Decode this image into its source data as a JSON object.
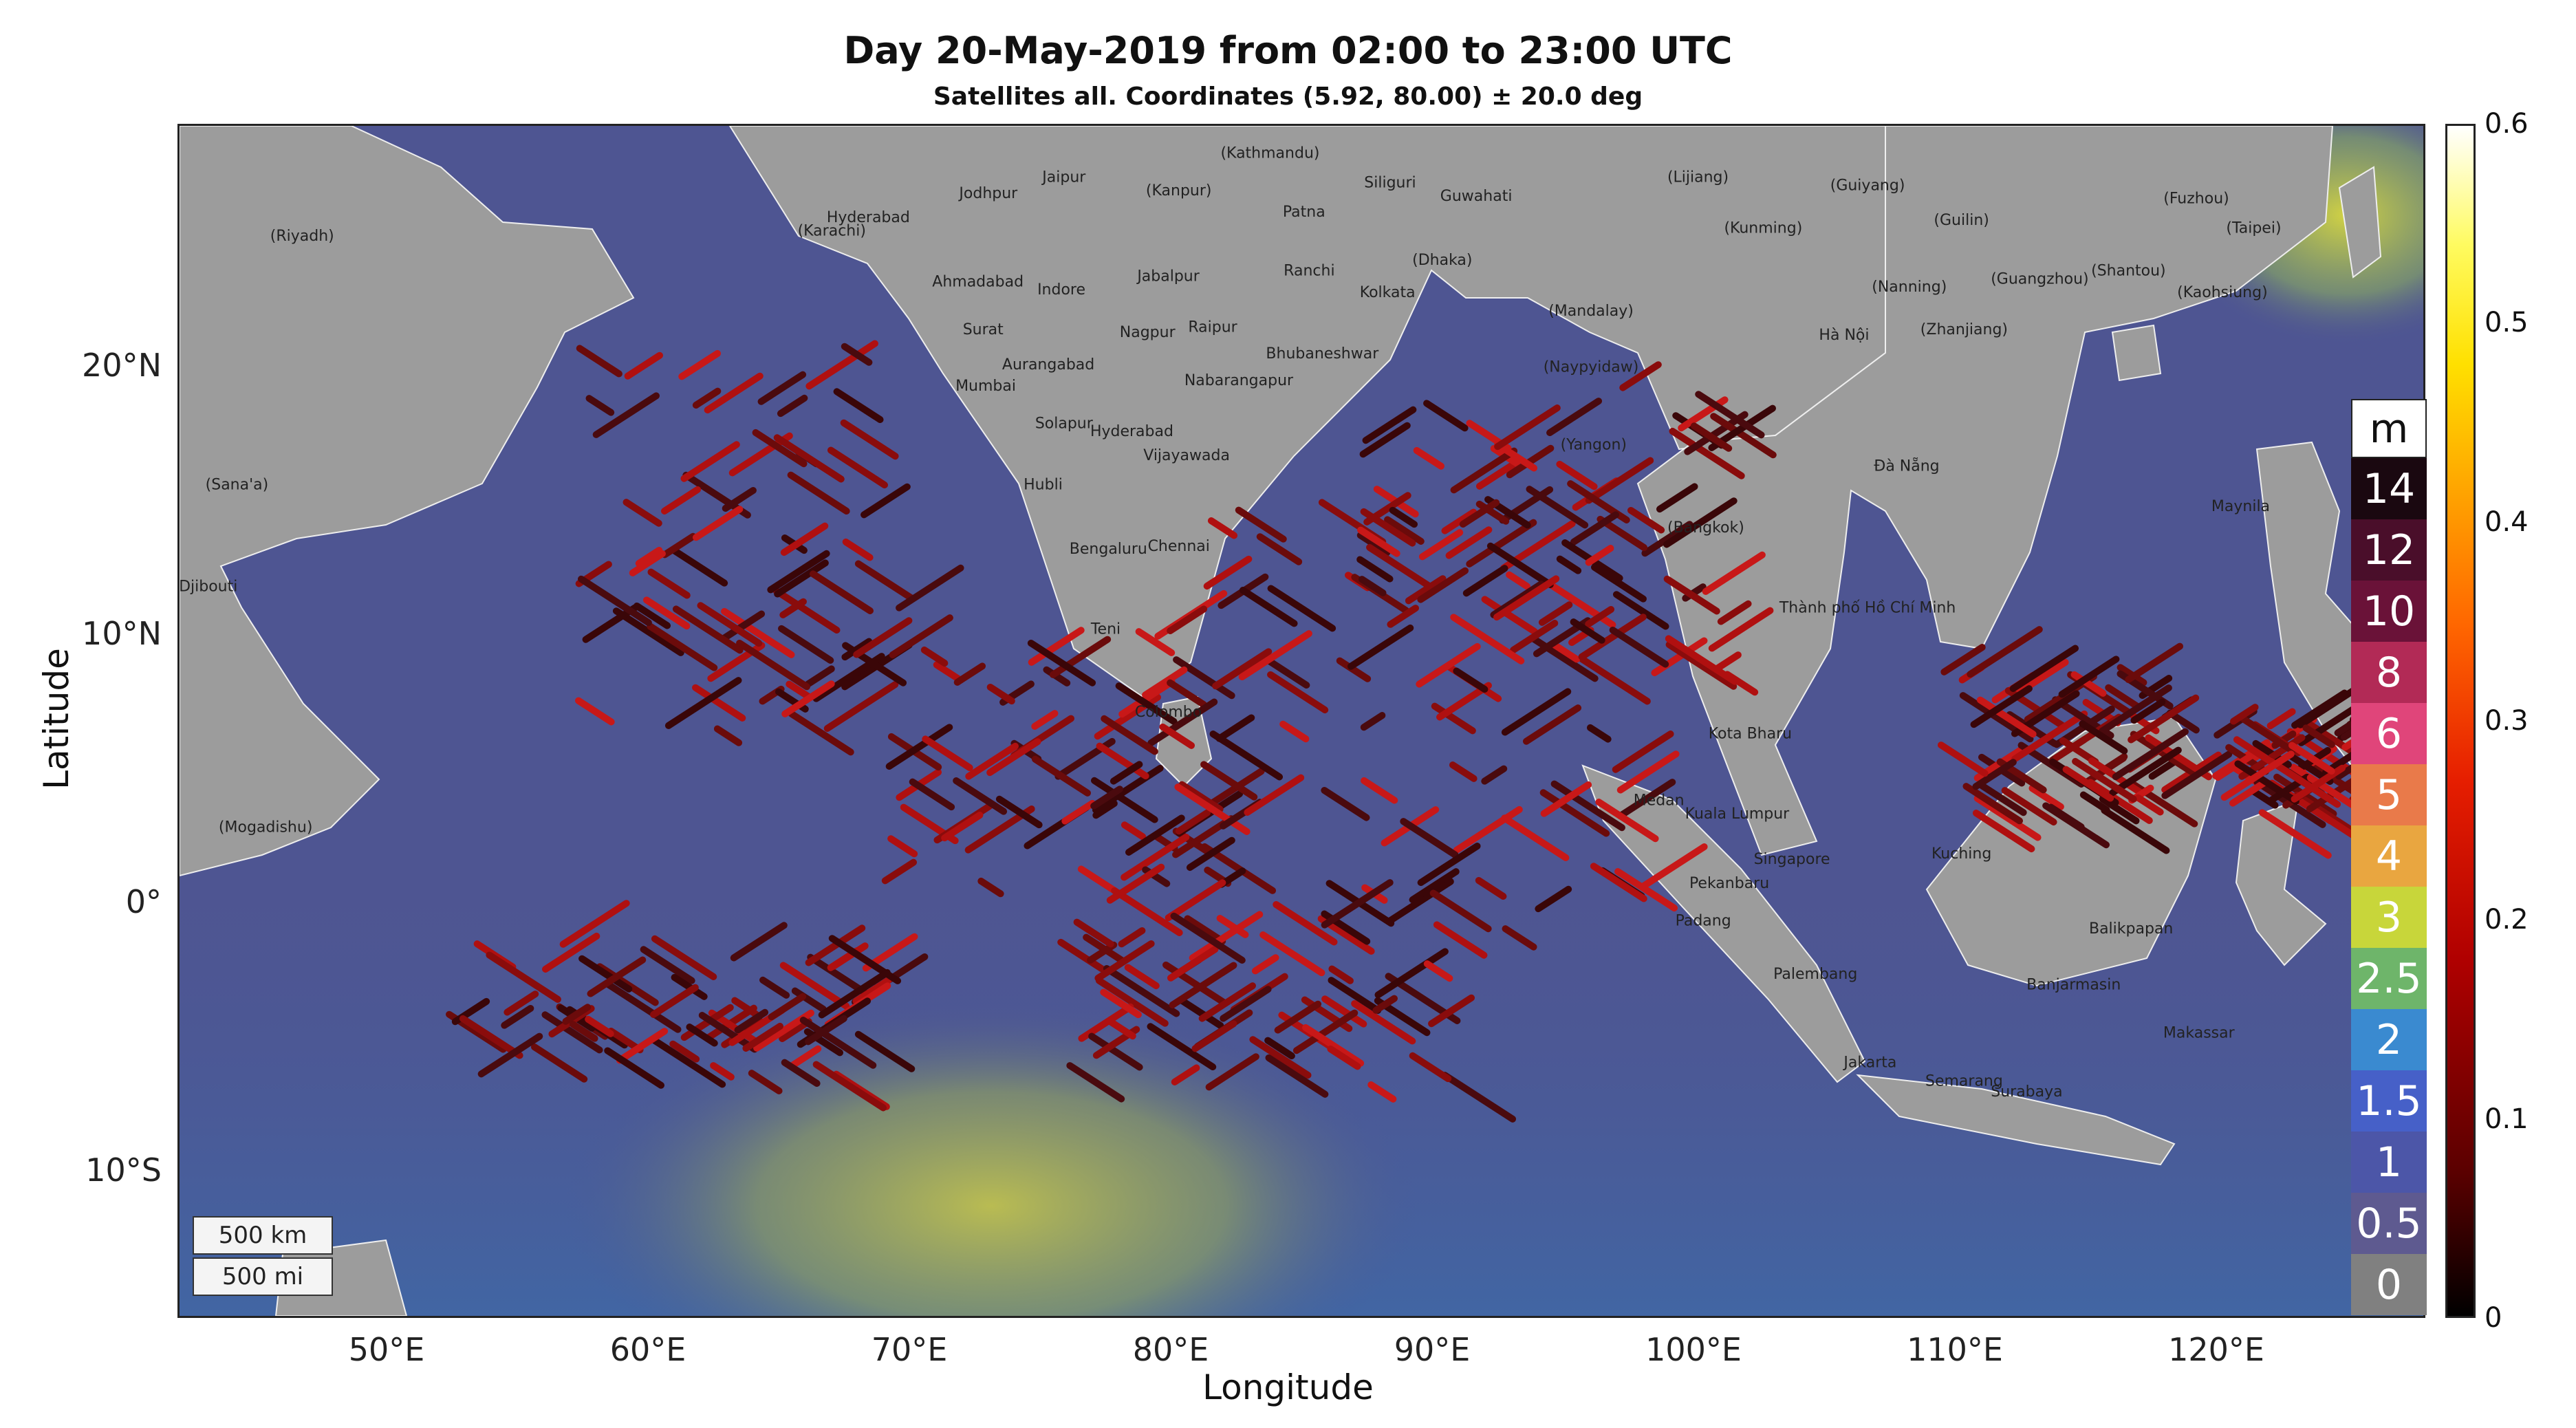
{
  "title": "Day 20-May-2019 from 02:00 to 23:00 UTC",
  "subtitle": "Satellites all. Coordinates (5.92, 80.00) ± 20.0 deg",
  "axes": {
    "xlabel": "Longitude",
    "ylabel": "Latitude",
    "lon_range": [
      42,
      128
    ],
    "lat_range": [
      -15.5,
      29
    ],
    "xticks": [
      {
        "value": 50,
        "label": "50°E"
      },
      {
        "value": 60,
        "label": "60°E"
      },
      {
        "value": 70,
        "label": "70°E"
      },
      {
        "value": 80,
        "label": "80°E"
      },
      {
        "value": 90,
        "label": "90°E"
      },
      {
        "value": 100,
        "label": "100°E"
      },
      {
        "value": 110,
        "label": "110°E"
      },
      {
        "value": 120,
        "label": "120°E"
      }
    ],
    "yticks": [
      {
        "value": 20,
        "label": "20°N"
      },
      {
        "value": 10,
        "label": "10°N"
      },
      {
        "value": 0,
        "label": "0°"
      },
      {
        "value": -10,
        "label": "10°S"
      }
    ]
  },
  "wave_legend": {
    "unit": "m",
    "items": [
      {
        "label": "14",
        "color": "#1a0810"
      },
      {
        "label": "12",
        "color": "#4a0e2a"
      },
      {
        "label": "10",
        "color": "#6a1238"
      },
      {
        "label": "8",
        "color": "#b22a56"
      },
      {
        "label": "6",
        "color": "#e0457a"
      },
      {
        "label": "5",
        "color": "#e97a4a"
      },
      {
        "label": "4",
        "color": "#e9a640"
      },
      {
        "label": "3",
        "color": "#c8d63a"
      },
      {
        "label": "2.5",
        "color": "#6eb56a"
      },
      {
        "label": "2",
        "color": "#3a8ad0"
      },
      {
        "label": "1.5",
        "color": "#4660c8"
      },
      {
        "label": "1",
        "color": "#4c56a8"
      },
      {
        "label": "0.5",
        "color": "#5e5a90"
      },
      {
        "label": "0",
        "color": "#808080"
      }
    ]
  },
  "colorbar": {
    "range": [
      0,
      0.6
    ],
    "ticks": [
      {
        "value": 0.6,
        "label": "0.6"
      },
      {
        "value": 0.5,
        "label": "0.5"
      },
      {
        "value": 0.4,
        "label": "0.4"
      },
      {
        "value": 0.3,
        "label": "0.3"
      },
      {
        "value": 0.2,
        "label": "0.2"
      },
      {
        "value": 0.1,
        "label": "0.1"
      },
      {
        "value": 0,
        "label": "0"
      }
    ]
  },
  "scale_bar": {
    "km": "500 km",
    "mi": "500 mi"
  },
  "map_labels": [
    {
      "text": "(Kathmandu)",
      "lon": 83.8,
      "lat": 27.8
    },
    {
      "text": "Jaipur",
      "lon": 75.9,
      "lat": 26.9
    },
    {
      "text": "(Kanpur)",
      "lon": 80.3,
      "lat": 26.4
    },
    {
      "text": "Siliguri",
      "lon": 88.4,
      "lat": 26.7
    },
    {
      "text": "Guwahati",
      "lon": 91.7,
      "lat": 26.2
    },
    {
      "text": "(Lijiang)",
      "lon": 100.2,
      "lat": 26.9
    },
    {
      "text": "(Guiyang)",
      "lon": 106.7,
      "lat": 26.6
    },
    {
      "text": "(Fuzhou)",
      "lon": 119.3,
      "lat": 26.1
    },
    {
      "text": "Jodhpur",
      "lon": 73.0,
      "lat": 26.3
    },
    {
      "text": "Patna",
      "lon": 85.1,
      "lat": 25.6
    },
    {
      "text": "(Kunming)",
      "lon": 102.7,
      "lat": 25.0
    },
    {
      "text": "(Guilin)",
      "lon": 110.3,
      "lat": 25.3
    },
    {
      "text": "(Taipei)",
      "lon": 121.5,
      "lat": 25.0
    },
    {
      "text": "(Riyadh)",
      "lon": 46.7,
      "lat": 24.7
    },
    {
      "text": "(Karachi)",
      "lon": 67.0,
      "lat": 24.9
    },
    {
      "text": "Hyderabad",
      "lon": 68.4,
      "lat": 25.4
    },
    {
      "text": "(Dhaka)",
      "lon": 90.4,
      "lat": 23.8
    },
    {
      "text": "Ahmadabad",
      "lon": 72.6,
      "lat": 23.0
    },
    {
      "text": "Indore",
      "lon": 75.8,
      "lat": 22.7
    },
    {
      "text": "Jabalpur",
      "lon": 79.9,
      "lat": 23.2
    },
    {
      "text": "Ranchi",
      "lon": 85.3,
      "lat": 23.4
    },
    {
      "text": "Kolkata",
      "lon": 88.3,
      "lat": 22.6
    },
    {
      "text": "(Mandalay)",
      "lon": 96.1,
      "lat": 21.9
    },
    {
      "text": "(Nanning)",
      "lon": 108.3,
      "lat": 22.8
    },
    {
      "text": "(Guangzhou)",
      "lon": 113.3,
      "lat": 23.1
    },
    {
      "text": "(Shantou)",
      "lon": 116.7,
      "lat": 23.4
    },
    {
      "text": "(Kaohsiung)",
      "lon": 120.3,
      "lat": 22.6
    },
    {
      "text": "(Zhanjiang)",
      "lon": 110.4,
      "lat": 21.2
    },
    {
      "text": "Hà Nội",
      "lon": 105.8,
      "lat": 21.0
    },
    {
      "text": "Surat",
      "lon": 72.8,
      "lat": 21.2
    },
    {
      "text": "Nagpur",
      "lon": 79.1,
      "lat": 21.1
    },
    {
      "text": "Raipur",
      "lon": 81.6,
      "lat": 21.3
    },
    {
      "text": "Bhubaneshwar",
      "lon": 85.8,
      "lat": 20.3
    },
    {
      "text": "(Naypyidaw)",
      "lon": 96.1,
      "lat": 19.8
    },
    {
      "text": "Aurangabad",
      "lon": 75.3,
      "lat": 19.9
    },
    {
      "text": "Mumbai",
      "lon": 72.9,
      "lat": 19.1
    },
    {
      "text": "Nabarangapur",
      "lon": 82.6,
      "lat": 19.3
    },
    {
      "text": "Solapur",
      "lon": 75.9,
      "lat": 17.7
    },
    {
      "text": "Hyderabad",
      "lon": 78.5,
      "lat": 17.4
    },
    {
      "text": "Vijayawada",
      "lon": 80.6,
      "lat": 16.5
    },
    {
      "text": "(Yangon)",
      "lon": 96.2,
      "lat": 16.9
    },
    {
      "text": "(Sana'a)",
      "lon": 44.2,
      "lat": 15.4
    },
    {
      "text": "Hubli",
      "lon": 75.1,
      "lat": 15.4
    },
    {
      "text": "Đà Nẵng",
      "lon": 108.2,
      "lat": 16.1
    },
    {
      "text": "Maynila",
      "lon": 121.0,
      "lat": 14.6
    },
    {
      "text": "(Bangkok)",
      "lon": 100.5,
      "lat": 13.8
    },
    {
      "text": "Bengaluru",
      "lon": 77.6,
      "lat": 13.0
    },
    {
      "text": "Chennai",
      "lon": 80.3,
      "lat": 13.1
    },
    {
      "text": "Djibouti",
      "lon": 43.1,
      "lat": 11.6
    },
    {
      "text": "Thành phố Hồ Chí Minh",
      "lon": 106.7,
      "lat": 10.8
    },
    {
      "text": "Teni",
      "lon": 77.5,
      "lat": 10.0
    },
    {
      "text": "Colombo",
      "lon": 79.9,
      "lat": 6.9
    },
    {
      "text": "Kota Bharu",
      "lon": 102.2,
      "lat": 6.1
    },
    {
      "text": "(Mogadishu)",
      "lon": 45.3,
      "lat": 2.6
    },
    {
      "text": "Medan",
      "lon": 98.7,
      "lat": 3.6
    },
    {
      "text": "Kuala Lumpur",
      "lon": 101.7,
      "lat": 3.1
    },
    {
      "text": "Singapore",
      "lon": 103.8,
      "lat": 1.4
    },
    {
      "text": "Pekanbaru",
      "lon": 101.4,
      "lat": 0.5
    },
    {
      "text": "Kuching",
      "lon": 110.3,
      "lat": 1.6
    },
    {
      "text": "Padang",
      "lon": 100.4,
      "lat": -0.9
    },
    {
      "text": "Balikpapan",
      "lon": 116.8,
      "lat": -1.2
    },
    {
      "text": "Palembang",
      "lon": 104.7,
      "lat": -2.9
    },
    {
      "text": "Banjarmasin",
      "lon": 114.6,
      "lat": -3.3
    },
    {
      "text": "Makassar",
      "lon": 119.4,
      "lat": -5.1
    },
    {
      "text": "Jakarta",
      "lon": 106.8,
      "lat": -6.2
    },
    {
      "text": "Semarang",
      "lon": 110.4,
      "lat": -6.9
    },
    {
      "text": "Surabaya",
      "lon": 112.8,
      "lat": -7.3
    }
  ]
}
